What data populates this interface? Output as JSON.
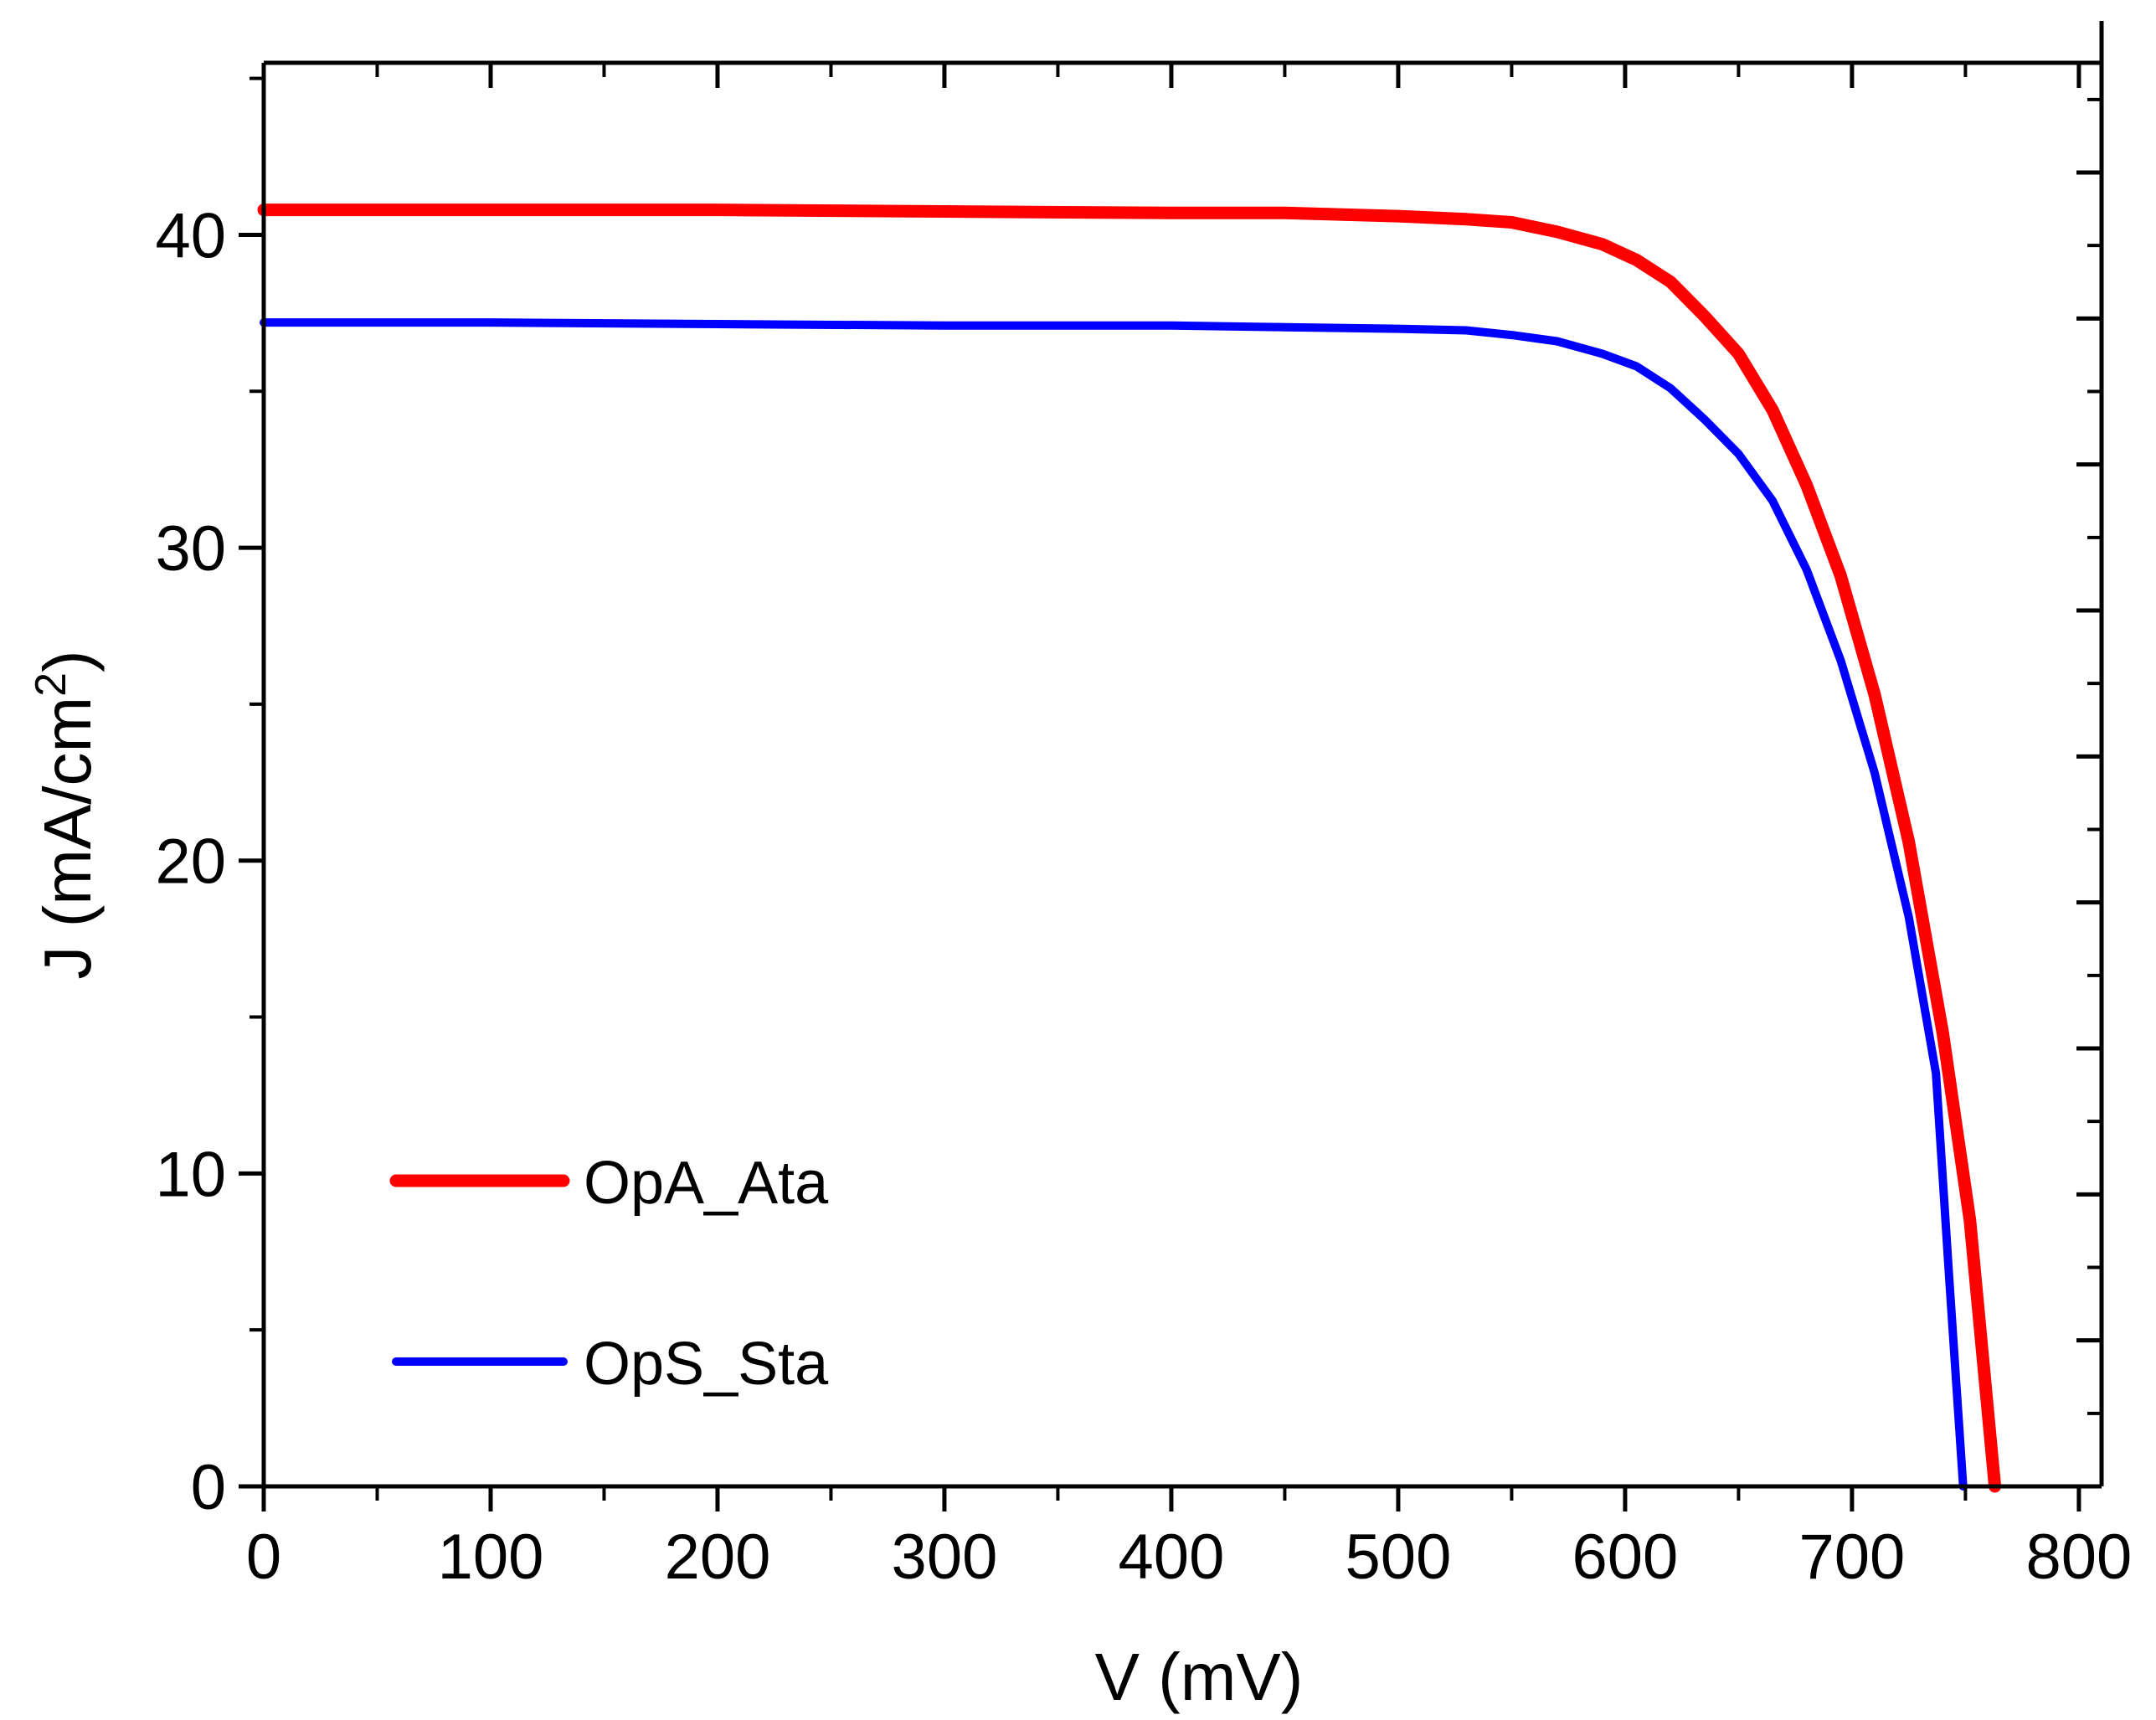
{
  "chart_data": {
    "type": "line",
    "title": "",
    "xlabel": "V (mV)",
    "ylabel_main": "J (mA/cm",
    "ylabel_sup": "2",
    "ylabel_close": ")",
    "xlim": [
      0,
      810
    ],
    "ylim": [
      0,
      45.5
    ],
    "x_ticks": [
      0,
      100,
      200,
      300,
      400,
      500,
      600,
      700,
      800
    ],
    "x_tick_labels": [
      "0",
      "100",
      "200",
      "300",
      "400",
      "500",
      "600",
      "700",
      "800"
    ],
    "x_minor_step": 50,
    "y_ticks": [
      0,
      10,
      20,
      30,
      40
    ],
    "y_tick_labels": [
      "0",
      "10",
      "20",
      "30",
      "40"
    ],
    "y_minor_step": 5,
    "right_axis": {
      "ylim": [
        0,
        45.5
      ],
      "major_step": 4.667,
      "minor_step": 2.333
    },
    "grid": false,
    "legend_position": "bottom-left",
    "series": [
      {
        "name": "OpA_Ata",
        "color": "#ff0000",
        "x": [
          0,
          100,
          200,
          300,
          400,
          450,
          500,
          530,
          550,
          570,
          590,
          605,
          620,
          635,
          650,
          665,
          680,
          695,
          710,
          725,
          740,
          752,
          763
        ],
        "y": [
          40.8,
          40.8,
          40.8,
          40.75,
          40.7,
          40.7,
          40.6,
          40.5,
          40.4,
          40.1,
          39.7,
          39.2,
          38.5,
          37.4,
          36.2,
          34.4,
          32.0,
          29.1,
          25.3,
          20.6,
          14.5,
          8.5,
          0
        ]
      },
      {
        "name": "OpS_Sta",
        "color": "#0000ff",
        "x": [
          0,
          100,
          200,
          300,
          400,
          450,
          500,
          530,
          550,
          570,
          590,
          605,
          620,
          635,
          650,
          665,
          680,
          695,
          710,
          725,
          737,
          743,
          749
        ],
        "y": [
          37.2,
          37.2,
          37.15,
          37.1,
          37.1,
          37.05,
          37.0,
          36.95,
          36.8,
          36.6,
          36.2,
          35.8,
          35.1,
          34.1,
          33.0,
          31.5,
          29.3,
          26.4,
          22.8,
          18.2,
          13.2,
          6.5,
          0
        ]
      }
    ]
  }
}
